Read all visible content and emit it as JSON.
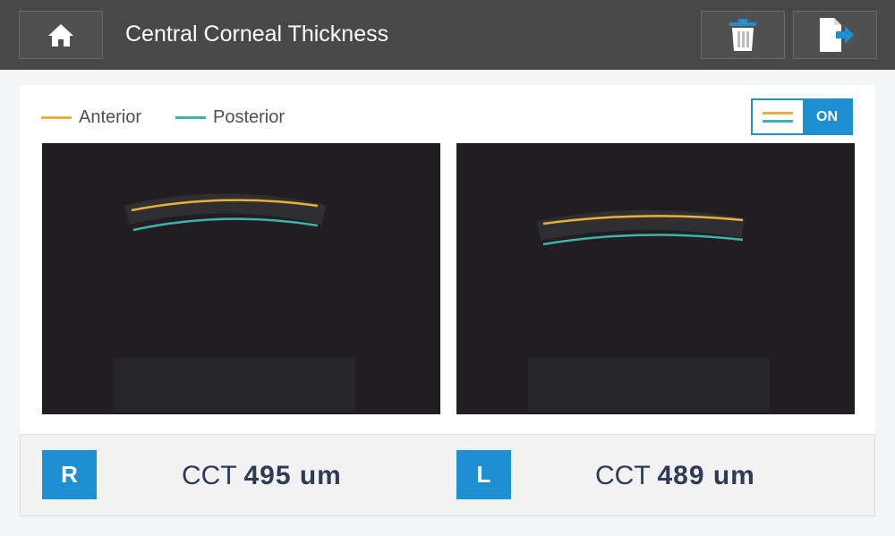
{
  "header": {
    "title": "Central Corneal Thickness"
  },
  "legend": {
    "anterior": "Anterior",
    "posterior": "Posterior"
  },
  "toggle": {
    "label": "ON"
  },
  "results": [
    {
      "eye": "R",
      "label": "CCT",
      "value": "495 um"
    },
    {
      "eye": "L",
      "label": "CCT",
      "value": "489 um"
    }
  ]
}
